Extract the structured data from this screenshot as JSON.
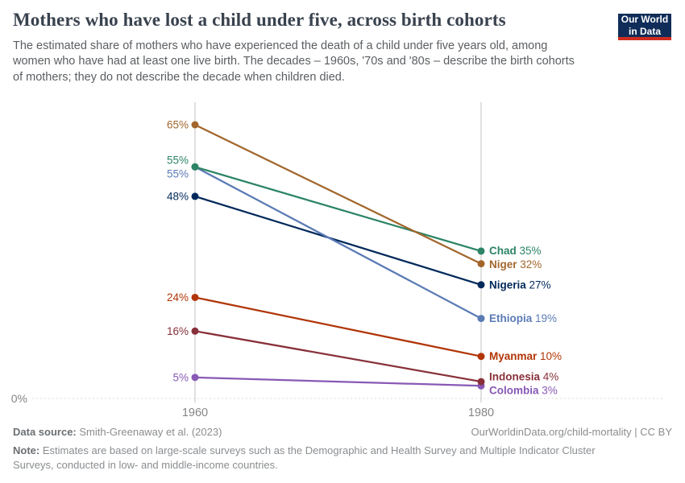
{
  "header": {
    "title": "Mothers who have lost a child under five, across birth cohorts",
    "subtitle": "The estimated share of mothers who have experienced the death of a child under five years old, among women who have had at least one live birth. The decades – 1960s, '70s and '80s – describe the birth cohorts of mothers; they do not describe the decade when children died.",
    "logo": {
      "line1": "Our World",
      "line2": "in Data",
      "bg_color": "#102d59",
      "stripe_color": "#cf2d20"
    }
  },
  "chart_data": {
    "type": "line",
    "variant": "slope",
    "x": [
      "1960",
      "1980"
    ],
    "unit": "%",
    "ylim": [
      0,
      70
    ],
    "baseline_label": "0%",
    "grid": "baseline-dashed-only",
    "legend_position": "end-of-line-labels",
    "series": [
      {
        "name": "Niger",
        "values": [
          65,
          32
        ],
        "color": "#A2662C"
      },
      {
        "name": "Chad",
        "values": [
          55,
          35
        ],
        "color": "#2C8465"
      },
      {
        "name": "Ethiopia",
        "values": [
          55,
          19
        ],
        "color": "#5B7BB5"
      },
      {
        "name": "Nigeria",
        "values": [
          48,
          27
        ],
        "color": "#00295B"
      },
      {
        "name": "Myanmar",
        "values": [
          24,
          10
        ],
        "color": "#B13507"
      },
      {
        "name": "Indonesia",
        "values": [
          16,
          4
        ],
        "color": "#883039"
      },
      {
        "name": "Colombia",
        "values": [
          5,
          3
        ],
        "color": "#8859B5"
      }
    ]
  },
  "footer": {
    "sources_label": "Data source:",
    "sources_text": "Smith-Greenaway et al. (2023)",
    "attribution": "OurWorldinData.org/child-mortality | CC BY",
    "note_label": "Note:",
    "note_text": "Estimates are based on large-scale surveys such as the Demographic and Health Survey and Multiple Indicator Cluster Surveys, conducted in low- and middle-income countries."
  }
}
